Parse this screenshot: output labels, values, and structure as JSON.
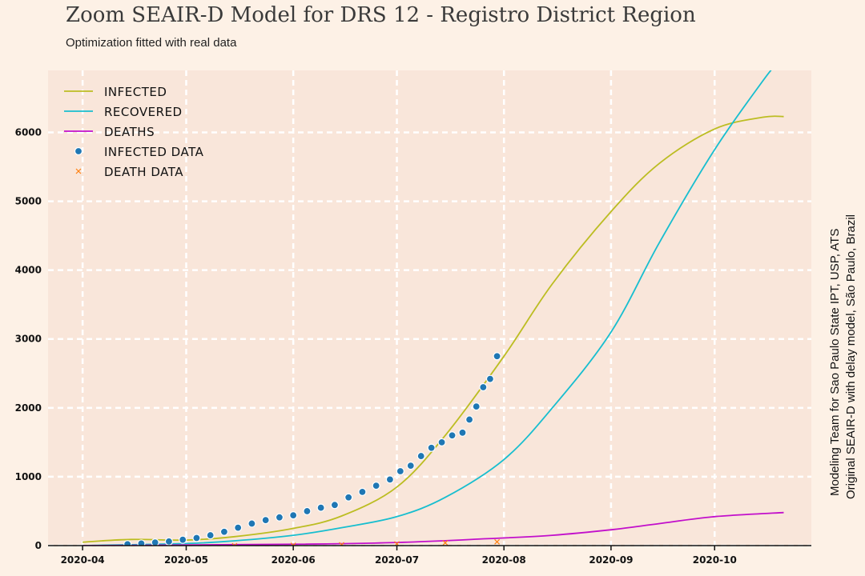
{
  "title": "Zoom SEAIR-D Model for DRS 12 - Registro District Region",
  "subtitle": "Optimization fitted with real data",
  "side_note": [
    "Modeling Team for Sao Paulo State IPT, USP, ATS",
    "Original SEAIR-D with delay model, São Paulo, Brazil"
  ],
  "colors": {
    "infected": "#bcbd22",
    "recovered": "#17becf",
    "deaths": "#c20fcb",
    "infected_data": "#1f77b4",
    "death_data": "#ff7f0e",
    "background": "#fdf1e6",
    "plot_bg": "#f9e6da"
  },
  "chart_data": {
    "type": "line",
    "title": "Zoom SEAIR-D Model for DRS 12 - Registro District Region",
    "xlabel": "",
    "ylabel": "",
    "xlim": [
      "2020-03-22",
      "2020-10-29"
    ],
    "ylim": [
      0,
      6900
    ],
    "x_ticks": [
      "2020-04",
      "2020-05",
      "2020-06",
      "2020-07",
      "2020-08",
      "2020-09",
      "2020-10"
    ],
    "y_ticks": [
      0,
      1000,
      2000,
      3000,
      4000,
      5000,
      6000
    ],
    "grid": true,
    "legend_position": "top-left",
    "series": [
      {
        "name": "Infected",
        "kind": "line",
        "x": [
          "2020-04-01",
          "2020-04-15",
          "2020-05-01",
          "2020-05-15",
          "2020-06-01",
          "2020-06-15",
          "2020-07-01",
          "2020-07-15",
          "2020-08-01",
          "2020-08-15",
          "2020-09-01",
          "2020-09-15",
          "2020-10-01",
          "2020-10-15",
          "2020-10-21"
        ],
        "y": [
          50,
          90,
          80,
          130,
          250,
          430,
          850,
          1600,
          2750,
          3800,
          4850,
          5550,
          6050,
          6220,
          6230
        ]
      },
      {
        "name": "Recovered",
        "kind": "line",
        "x": [
          "2020-04-01",
          "2020-05-01",
          "2020-05-15",
          "2020-06-01",
          "2020-06-15",
          "2020-07-01",
          "2020-07-15",
          "2020-08-01",
          "2020-08-15",
          "2020-09-01",
          "2020-09-15",
          "2020-10-01",
          "2020-10-15",
          "2020-10-19"
        ],
        "y": [
          0,
          30,
          70,
          150,
          260,
          420,
          700,
          1250,
          2000,
          3100,
          4400,
          5750,
          6750,
          7000
        ]
      },
      {
        "name": "Deaths",
        "kind": "line",
        "x": [
          "2020-04-01",
          "2020-06-01",
          "2020-07-01",
          "2020-07-27",
          "2020-08-15",
          "2020-09-01",
          "2020-09-15",
          "2020-10-01",
          "2020-10-21"
        ],
        "y": [
          0,
          20,
          45,
          100,
          150,
          230,
          320,
          420,
          480
        ]
      },
      {
        "name": "Infected Data",
        "kind": "scatter",
        "x": [
          "2020-04-14",
          "2020-04-18",
          "2020-04-22",
          "2020-04-26",
          "2020-04-30",
          "2020-05-04",
          "2020-05-08",
          "2020-05-12",
          "2020-05-16",
          "2020-05-20",
          "2020-05-24",
          "2020-05-28",
          "2020-06-01",
          "2020-06-05",
          "2020-06-09",
          "2020-06-13",
          "2020-06-17",
          "2020-06-21",
          "2020-06-25",
          "2020-06-29",
          "2020-07-02",
          "2020-07-05",
          "2020-07-08",
          "2020-07-11",
          "2020-07-14",
          "2020-07-17",
          "2020-07-20",
          "2020-07-22",
          "2020-07-24",
          "2020-07-26",
          "2020-07-28",
          "2020-07-30"
        ],
        "y": [
          20,
          30,
          45,
          60,
          85,
          110,
          150,
          200,
          260,
          320,
          370,
          410,
          440,
          500,
          550,
          590,
          700,
          780,
          870,
          960,
          1080,
          1160,
          1300,
          1420,
          1500,
          1600,
          1640,
          1830,
          2020,
          2300,
          2420,
          2750
        ]
      },
      {
        "name": "Death Data",
        "kind": "scatter",
        "x": [
          "2020-05-15",
          "2020-06-01",
          "2020-06-15",
          "2020-07-01",
          "2020-07-15",
          "2020-07-30"
        ],
        "y": [
          0,
          5,
          12,
          25,
          40,
          55
        ]
      }
    ]
  }
}
